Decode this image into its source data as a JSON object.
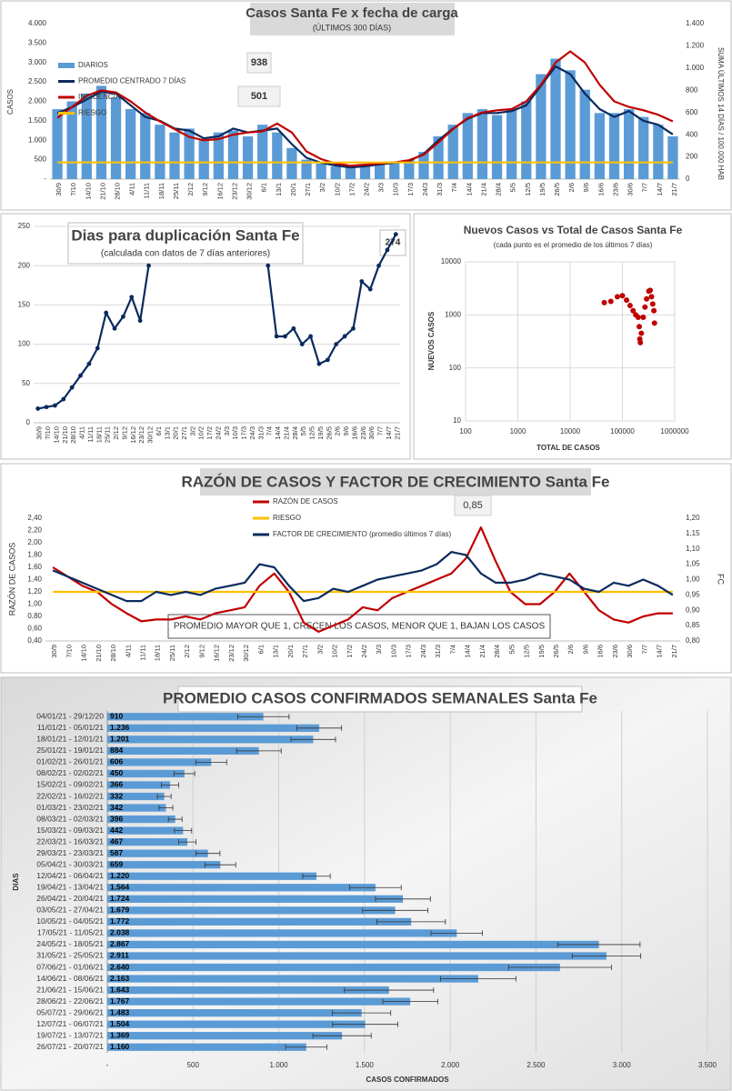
{
  "chart_data": [
    {
      "type": "combo",
      "title": "Casos Santa Fe x fecha de carga",
      "subtitle": "(ÚLTIMOS 300 DÍAS)",
      "y_label": "CASOS",
      "y2_label": "SUMA ÚLTIMOS 14 DÍAS / 100.000 HAB",
      "annotations": [
        "938",
        "501"
      ],
      "categories": [
        "30/9",
        "7/10",
        "14/10",
        "21/10",
        "28/10",
        "4/11",
        "11/11",
        "18/11",
        "25/11",
        "2/12",
        "9/12",
        "16/12",
        "23/12",
        "30/12",
        "6/1",
        "13/1",
        "20/1",
        "27/1",
        "3/2",
        "10/2",
        "17/2",
        "24/2",
        "3/3",
        "10/3",
        "17/3",
        "24/3",
        "31/3",
        "7/4",
        "14/4",
        "21/4",
        "28/4",
        "5/5",
        "12/5",
        "19/5",
        "26/5",
        "2/6",
        "9/6",
        "16/6",
        "23/6",
        "30/6",
        "7/7",
        "14/7",
        "21/7"
      ],
      "series": [
        {
          "name": "DIARIOS",
          "kind": "bar",
          "color": "#5b9bd5",
          "values": [
            1800,
            2000,
            2200,
            2400,
            2100,
            1800,
            1700,
            1400,
            1200,
            1300,
            1000,
            1200,
            1250,
            1100,
            1400,
            1200,
            800,
            500,
            400,
            330,
            300,
            350,
            400,
            450,
            500,
            700,
            1100,
            1400,
            1700,
            1800,
            1650,
            1800,
            2000,
            2700,
            3100,
            2800,
            2300,
            1700,
            1700,
            1800,
            1600,
            1400,
            1100
          ]
        },
        {
          "name": "PROMEDIO CENTRADO 7 DÍAS",
          "kind": "line",
          "color": "#0b2a5e",
          "values": [
            1700,
            1850,
            2050,
            2250,
            2200,
            1900,
            1600,
            1500,
            1300,
            1250,
            1050,
            1100,
            1300,
            1200,
            1250,
            1300,
            900,
            550,
            420,
            350,
            300,
            330,
            380,
            420,
            460,
            650,
            1000,
            1300,
            1550,
            1700,
            1700,
            1750,
            1900,
            2400,
            2900,
            2700,
            2200,
            1800,
            1600,
            1750,
            1500,
            1400,
            1150
          ]
        },
        {
          "name": "INCIDENCIA",
          "kind": "line",
          "axis": "y2",
          "color": "#c00000",
          "values": [
            550,
            650,
            750,
            800,
            780,
            700,
            600,
            520,
            450,
            380,
            350,
            360,
            400,
            420,
            430,
            500,
            420,
            250,
            180,
            140,
            120,
            130,
            140,
            150,
            170,
            220,
            330,
            450,
            550,
            600,
            620,
            630,
            700,
            850,
            1050,
            1150,
            1050,
            850,
            700,
            650,
            620,
            580,
            520
          ]
        },
        {
          "name": "RIESGO",
          "kind": "line",
          "axis": "y2",
          "color": "#ffc000",
          "values": [
            150,
            150,
            150,
            150,
            150,
            150,
            150,
            150,
            150,
            150,
            150,
            150,
            150,
            150,
            150,
            150,
            150,
            150,
            150,
            150,
            150,
            150,
            150,
            150,
            150,
            150,
            150,
            150,
            150,
            150,
            150,
            150,
            150,
            150,
            150,
            150,
            150,
            150,
            150,
            150,
            150,
            150,
            150
          ]
        }
      ],
      "ylim": [
        0,
        4000
      ],
      "yticks": [
        {
          "value": 0,
          "label": "-"
        },
        500,
        {
          "value": 1000,
          "label": "1.000"
        },
        {
          "value": 1500,
          "label": "1.500"
        },
        {
          "value": 2000,
          "label": "2.000"
        },
        {
          "value": 2500,
          "label": "2.500"
        },
        {
          "value": 3000,
          "label": "3.000"
        },
        {
          "value": 3500,
          "label": "3.500"
        },
        {
          "value": 4000,
          "label": "4.000"
        }
      ],
      "y2lim": [
        0,
        1400
      ],
      "y2ticks": [
        0,
        200,
        400,
        600,
        800,
        {
          "value": 1000,
          "label": "1.000"
        },
        {
          "value": 1200,
          "label": "1.200"
        },
        {
          "value": 1400,
          "label": "1.400"
        }
      ],
      "grid": false
    },
    {
      "type": "line",
      "title": "Dias para duplicación Santa Fe",
      "subtitle": "(calculada con datos de 7 días anteriores)",
      "annotations": [
        "274"
      ],
      "color": "#0b2a5e",
      "categories": [
        "30/9",
        "7/10",
        "14/10",
        "21/10",
        "28/10",
        "4/11",
        "11/11",
        "18/11",
        "25/11",
        "2/12",
        "9/12",
        "16/12",
        "23/12",
        "30/12",
        "6/1",
        "13/1",
        "20/1",
        "27/1",
        "3/2",
        "10/2",
        "17/2",
        "24/2",
        "3/3",
        "10/3",
        "17/3",
        "24/3",
        "31/3",
        "7/4",
        "14/4",
        "21/4",
        "28/4",
        "5/5",
        "12/5",
        "19/5",
        "26/5",
        "2/6",
        "9/6",
        "16/6",
        "23/6",
        "30/6",
        "7/7",
        "14/7",
        "21/7"
      ],
      "values": [
        18,
        20,
        22,
        30,
        45,
        60,
        75,
        95,
        140,
        120,
        135,
        160,
        130,
        200,
        null,
        null,
        null,
        null,
        null,
        null,
        null,
        null,
        null,
        null,
        null,
        null,
        null,
        200,
        110,
        110,
        120,
        100,
        110,
        75,
        80,
        100,
        110,
        120,
        180,
        170,
        200,
        220,
        240
      ],
      "markers": true,
      "ylim": [
        0,
        250
      ],
      "yticks": [
        0,
        50,
        100,
        150,
        200,
        250
      ],
      "grid": true
    },
    {
      "type": "scatter",
      "title": "Nuevos Casos vs Total de Casos Santa Fe",
      "subtitle": "(cada punto es el promedio de los últimos 7 días)",
      "x_label": "TOTAL DE CASOS",
      "y_label": "NUEVOS CASOS",
      "color": "#c00000",
      "x": [
        45000,
        60000,
        80000,
        100000,
        120000,
        140000,
        160000,
        180000,
        200000,
        210000,
        215000,
        220000,
        230000,
        250000,
        270000,
        290000,
        320000,
        340000,
        360000,
        380000,
        400000,
        410000
      ],
      "values": [
        1700,
        1800,
        2200,
        2300,
        1900,
        1500,
        1200,
        1000,
        900,
        600,
        350,
        300,
        450,
        900,
        1400,
        2000,
        2800,
        2900,
        2200,
        1600,
        1200,
        700
      ],
      "xscale": "log",
      "yscale": "log",
      "xlim": [
        100,
        1000000
      ],
      "xticks": [
        100,
        1000,
        10000,
        100000,
        1000000
      ],
      "ylim": [
        10,
        10000
      ],
      "yticks": [
        10,
        100,
        1000,
        10000
      ],
      "grid": true
    },
    {
      "type": "line",
      "title": "RAZÓN DE CASOS Y FACTOR DE CRECIMIENTO Santa Fe",
      "y_label": "RAZÓN DE CASOS",
      "y2_label": "FC",
      "annotations": [
        "0,85",
        "PROMEDIO MAYOR QUE 1, CRECEN LOS CASOS, MENOR QUE 1, BAJAN LOS CASOS"
      ],
      "categories": [
        "30/9",
        "7/10",
        "14/10",
        "21/10",
        "28/10",
        "4/11",
        "11/11",
        "18/11",
        "25/11",
        "2/12",
        "9/12",
        "16/12",
        "23/12",
        "30/12",
        "6/1",
        "13/1",
        "20/1",
        "27/1",
        "3/2",
        "10/2",
        "17/2",
        "24/2",
        "3/3",
        "10/3",
        "17/3",
        "24/3",
        "31/3",
        "7/4",
        "14/4",
        "21/4",
        "28/4",
        "5/5",
        "12/5",
        "19/5",
        "26/5",
        "2/6",
        "9/6",
        "16/6",
        "23/6",
        "30/6",
        "7/7",
        "14/7",
        "21/7"
      ],
      "series": [
        {
          "name": "RAZÓN DE CASOS",
          "color": "#c00000",
          "values": [
            1.6,
            1.45,
            1.3,
            1.2,
            1.0,
            0.85,
            0.72,
            0.75,
            0.75,
            0.8,
            0.75,
            0.85,
            0.9,
            0.95,
            1.3,
            1.5,
            1.2,
            0.7,
            0.55,
            0.65,
            0.75,
            0.95,
            0.9,
            1.1,
            1.2,
            1.3,
            1.4,
            1.5,
            1.75,
            2.25,
            1.7,
            1.2,
            1.0,
            1.0,
            1.2,
            1.5,
            1.2,
            0.9,
            0.75,
            0.7,
            0.8,
            0.85,
            0.85
          ]
        },
        {
          "name": "RIESGO",
          "color": "#ffc000",
          "values": [
            1.2,
            1.2,
            1.2,
            1.2,
            1.2,
            1.2,
            1.2,
            1.2,
            1.2,
            1.2,
            1.2,
            1.2,
            1.2,
            1.2,
            1.2,
            1.2,
            1.2,
            1.2,
            1.2,
            1.2,
            1.2,
            1.2,
            1.2,
            1.2,
            1.2,
            1.2,
            1.2,
            1.2,
            1.2,
            1.2,
            1.2,
            1.2,
            1.2,
            1.2,
            1.2,
            1.2,
            1.2,
            1.2,
            1.2,
            1.2,
            1.2,
            1.2,
            1.2
          ]
        },
        {
          "name": "FACTOR DE CRECIMIENTO (promedio últimos 7 días)",
          "axis": "y2",
          "color": "#0b2a5e",
          "values": [
            1.03,
            1.01,
            0.99,
            0.97,
            0.95,
            0.93,
            0.93,
            0.96,
            0.95,
            0.96,
            0.95,
            0.97,
            0.98,
            0.99,
            1.05,
            1.04,
            0.98,
            0.93,
            0.94,
            0.97,
            0.96,
            0.98,
            1.0,
            1.01,
            1.02,
            1.03,
            1.05,
            1.09,
            1.08,
            1.02,
            0.99,
            0.99,
            1.0,
            1.02,
            1.01,
            1.0,
            0.97,
            0.96,
            0.99,
            0.98,
            1.0,
            0.98,
            0.95
          ]
        }
      ],
      "ylim": [
        0.4,
        2.4
      ],
      "yticks": [
        {
          "value": 0.4,
          "label": "0,40"
        },
        {
          "value": 0.6,
          "label": "0,60"
        },
        {
          "value": 0.8,
          "label": "0,80"
        },
        {
          "value": 1.0,
          "label": "1,00"
        },
        {
          "value": 1.2,
          "label": "1,20"
        },
        {
          "value": 1.4,
          "label": "1,40"
        },
        {
          "value": 1.6,
          "label": "1,60"
        },
        {
          "value": 1.8,
          "label": "1,80"
        },
        {
          "value": 2.0,
          "label": "2,00"
        },
        {
          "value": 2.2,
          "label": "2,20"
        },
        {
          "value": 2.4,
          "label": "2,40"
        }
      ],
      "y2lim": [
        0.8,
        1.2
      ],
      "y2ticks": [
        {
          "value": 0.8,
          "label": "0,80"
        },
        {
          "value": 0.85,
          "label": "0,85"
        },
        {
          "value": 0.9,
          "label": "0,90"
        },
        {
          "value": 0.95,
          "label": "0,95"
        },
        {
          "value": 1.0,
          "label": "1,00"
        },
        {
          "value": 1.05,
          "label": "1,05"
        },
        {
          "value": 1.1,
          "label": "1,10"
        },
        {
          "value": 1.15,
          "label": "1,15"
        },
        {
          "value": 1.2,
          "label": "1,20"
        }
      ],
      "grid": false
    },
    {
      "type": "bar",
      "orientation": "horizontal",
      "title": "PROMEDIO CASOS CONFIRMADOS SEMANALES Santa Fe",
      "x_label": "CASOS CONFIRMADOS",
      "y_label": "DIAS",
      "color": "#5b9bd5",
      "categories": [
        "04/01/21 - 29/12/20",
        "11/01/21 - 05/01/21",
        "18/01/21 - 12/01/21",
        "25/01/21 - 19/01/21",
        "01/02/21 - 26/01/21",
        "08/02/21 - 02/02/21",
        "15/02/21 - 09/02/21",
        "22/02/21 - 16/02/21",
        "01/03/21 - 23/02/21",
        "08/03/21 - 02/03/21",
        "15/03/21 - 09/03/21",
        "22/03/21 - 16/03/21",
        "29/03/21 - 23/03/21",
        "05/04/21 - 30/03/21",
        "12/04/21 - 06/04/21",
        "19/04/21 - 13/04/21",
        "26/04/21 - 20/04/21",
        "03/05/21 - 27/04/21",
        "10/05/21 - 04/05/21",
        "17/05/21 - 11/05/21",
        "24/05/21 - 18/05/21",
        "31/05/21 - 25/05/21",
        "07/06/21 - 01/06/21",
        "14/06/21 - 08/06/21",
        "21/06/21 - 15/06/21",
        "28/06/21 - 22/06/21",
        "05/07/21 - 29/06/21",
        "12/07/21 - 06/07/21",
        "19/07/21 - 13/07/21",
        "26/07/21 - 20/07/21"
      ],
      "values": [
        910,
        1236,
        1201,
        884,
        606,
        450,
        366,
        332,
        342,
        396,
        442,
        467,
        587,
        659,
        1220,
        1564,
        1724,
        1679,
        1772,
        2038,
        2867,
        2911,
        2640,
        2163,
        1643,
        1767,
        1483,
        1504,
        1369,
        1160
      ],
      "value_labels": [
        "910",
        "1.236",
        "1.201",
        "884",
        "606",
        "450",
        "366",
        "332",
        "342",
        "396",
        "442",
        "467",
        "587",
        "659",
        "1.220",
        "1.564",
        "1.724",
        "1.679",
        "1.772",
        "2.038",
        "2.867",
        "2.911",
        "2.640",
        "2.163",
        "1.643",
        "1.767",
        "1.483",
        "1.504",
        "1.369",
        "1.160"
      ],
      "errors": [
        150,
        130,
        130,
        130,
        90,
        60,
        50,
        40,
        40,
        40,
        50,
        50,
        70,
        90,
        80,
        150,
        160,
        190,
        200,
        150,
        240,
        200,
        300,
        220,
        260,
        160,
        170,
        190,
        170,
        120
      ],
      "xlim": [
        0,
        3500
      ],
      "xticks": [
        {
          "value": 0,
          "label": "-"
        },
        500,
        {
          "value": 1000,
          "label": "1.000"
        },
        {
          "value": 1500,
          "label": "1.500"
        },
        {
          "value": 2000,
          "label": "2.000"
        },
        {
          "value": 2500,
          "label": "2.500"
        },
        {
          "value": 3000,
          "label": "3.000"
        },
        {
          "value": 3500,
          "label": "3.500"
        }
      ],
      "grid": true
    }
  ]
}
